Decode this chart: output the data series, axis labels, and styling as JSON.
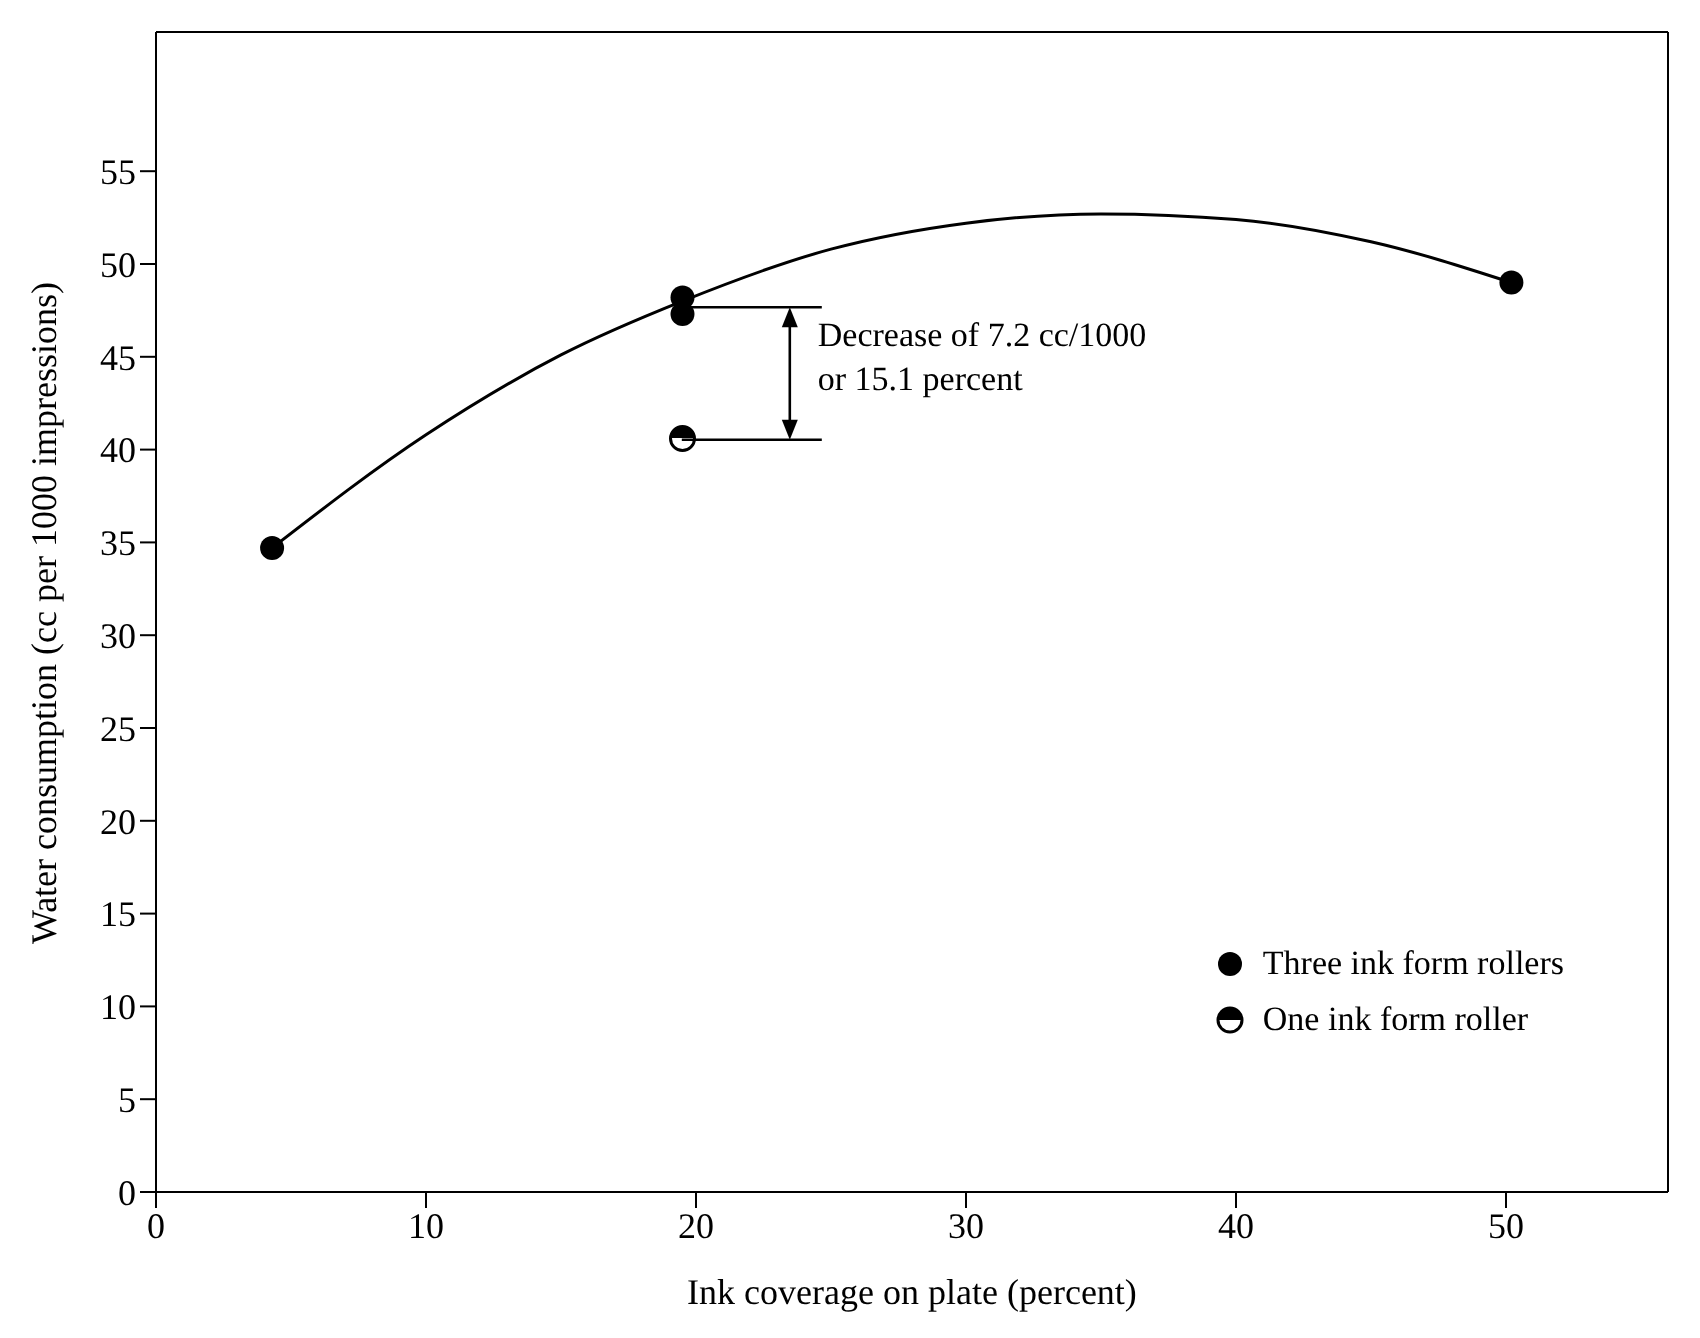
{
  "chart_data": {
    "type": "scatter",
    "xlabel": "Ink coverage on plate (percent)",
    "ylabel": "Water consumption (cc per 1000 impressions)",
    "xlim": [
      0,
      56
    ],
    "xticks": [
      0,
      10,
      20,
      30,
      40,
      50
    ],
    "ylim": [
      0,
      62.5
    ],
    "yticks": [
      0,
      5,
      10,
      15,
      20,
      25,
      30,
      35,
      40,
      45,
      50,
      55
    ],
    "grid": false,
    "legend": "bottom right",
    "series": [
      {
        "name": "Three ink form rollers",
        "marker": "circle",
        "color": "#000000",
        "x": [
          4.3,
          19.5,
          19.5,
          50.2
        ],
        "values": [
          34.7,
          48.2,
          47.3,
          49.0
        ]
      },
      {
        "name": "One ink form roller",
        "marker": "circle",
        "color": "#000000",
        "x": [
          19.5
        ],
        "values": [
          40.6
        ]
      },
      {
        "type": "line",
        "marker": "none",
        "line_style": "solid",
        "color": "#000000",
        "x": [
          4.3,
          10,
          15,
          19.5,
          25,
          30,
          35,
          40,
          45,
          50.2
        ],
        "values": [
          34.7,
          40.8,
          45.1,
          48.0,
          50.8,
          52.2,
          52.7,
          52.4,
          51.2,
          49.0
        ]
      }
    ],
    "annotations": [
      {
        "text": "Decrease of 7.2 cc/1000\nor 15.1 percent",
        "x": 19.5,
        "y": 40.6
      }
    ]
  }
}
